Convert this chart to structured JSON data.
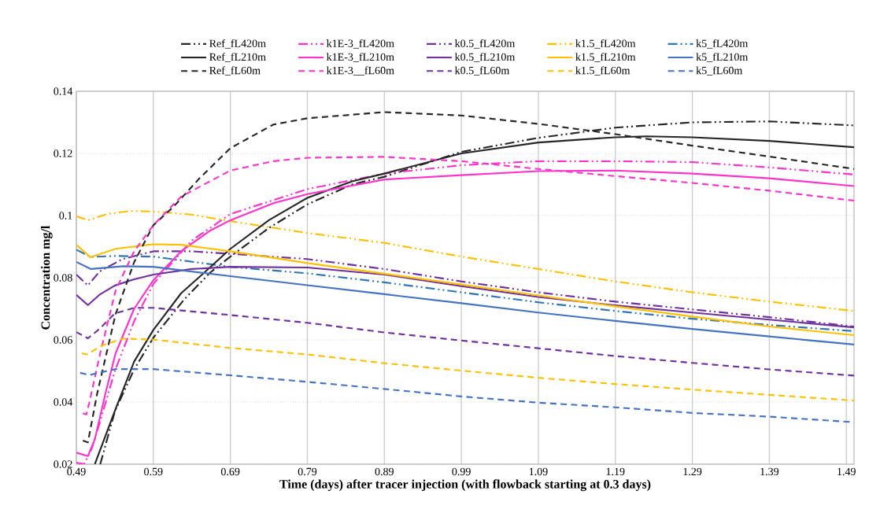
{
  "chart_data": {
    "type": "line",
    "xlabel": "Time (days) after tracer injection (with flowback starting at 0.3 days)",
    "ylabel": "Concentration mg/l",
    "xlim": [
      0.49,
      1.5
    ],
    "ylim": [
      0.02,
      0.14
    ],
    "xticks": [
      0.49,
      0.59,
      0.69,
      0.79,
      0.89,
      0.99,
      1.09,
      1.19,
      1.29,
      1.39,
      1.49
    ],
    "yticks": [
      0.02,
      0.04,
      0.06,
      0.08,
      0.1,
      0.12,
      0.14
    ],
    "grid": true,
    "legend": "top",
    "marker": "none",
    "series": [
      {
        "name": "Ref_fL420m",
        "color": "#262626",
        "line_style": "dashdotdot",
        "x": [
          0.521,
          0.54,
          0.565,
          0.59,
          0.63,
          0.664,
          0.69,
          0.74,
          0.79,
          0.848,
          0.89,
          0.99,
          1.09,
          1.19,
          1.29,
          1.39,
          1.5
        ],
        "values": [
          0.02,
          0.037,
          0.0505,
          0.0607,
          0.073,
          0.0817,
          0.0868,
          0.096,
          0.1036,
          0.11,
          0.1125,
          0.1205,
          0.125,
          0.1283,
          0.13,
          0.1303,
          0.129
        ]
      },
      {
        "name": "k1E-3_fL420m",
        "color": "#ff33cc",
        "line_style": "dashdotdot",
        "x": [
          0.49,
          0.5,
          0.51,
          0.52,
          0.54,
          0.565,
          0.59,
          0.64,
          0.69,
          0.79,
          0.89,
          0.99,
          1.09,
          1.19,
          1.29,
          1.39,
          1.5
        ],
        "values": [
          0.0205,
          0.02,
          0.025,
          0.033,
          0.05,
          0.066,
          0.078,
          0.092,
          0.1005,
          0.1085,
          0.1135,
          0.1162,
          0.1175,
          0.1175,
          0.1172,
          0.1155,
          0.1132
        ]
      },
      {
        "name": "k0.5_fL420m",
        "color": "#7030a0",
        "line_style": "dashdotdot",
        "x": [
          0.49,
          0.505,
          0.52,
          0.55,
          0.59,
          0.64,
          0.69,
          0.79,
          0.89,
          0.99,
          1.09,
          1.19,
          1.29,
          1.39,
          1.5
        ],
        "values": [
          0.081,
          0.0775,
          0.082,
          0.086,
          0.0885,
          0.0885,
          0.0877,
          0.086,
          0.0828,
          0.0788,
          0.0753,
          0.0723,
          0.0698,
          0.0673,
          0.0643
        ]
      },
      {
        "name": "k1.5_fL420m",
        "color": "#ffc000",
        "line_style": "dashdotdot",
        "x": [
          0.49,
          0.505,
          0.53,
          0.56,
          0.59,
          0.64,
          0.69,
          0.79,
          0.89,
          0.99,
          1.09,
          1.19,
          1.29,
          1.39,
          1.5
        ],
        "values": [
          0.0998,
          0.0985,
          0.1005,
          0.1015,
          0.1013,
          0.1003,
          0.0982,
          0.0944,
          0.0912,
          0.0868,
          0.0828,
          0.0788,
          0.0753,
          0.0723,
          0.0693
        ]
      },
      {
        "name": "k5_fL420m",
        "color": "#2e75b6",
        "line_style": "dashdotdot",
        "x": [
          0.49,
          0.509,
          0.541,
          0.59,
          0.69,
          0.79,
          0.89,
          0.99,
          1.09,
          1.19,
          1.29,
          1.39,
          1.5
        ],
        "values": [
          0.089,
          0.0867,
          0.087,
          0.0868,
          0.0835,
          0.0814,
          0.0785,
          0.0753,
          0.0721,
          0.0693,
          0.0668,
          0.0648,
          0.0628
        ]
      },
      {
        "name": "Ref_fL210m",
        "color": "#262626",
        "line_style": "solid",
        "x": [
          0.514,
          0.541,
          0.565,
          0.59,
          0.626,
          0.664,
          0.69,
          0.74,
          0.79,
          0.848,
          0.89,
          0.99,
          1.09,
          1.19,
          1.23,
          1.29,
          1.39,
          1.5
        ],
        "values": [
          0.02,
          0.0378,
          0.053,
          0.0632,
          0.075,
          0.0834,
          0.0893,
          0.0985,
          0.1057,
          0.111,
          0.1135,
          0.12,
          0.1235,
          0.1252,
          0.1255,
          0.1252,
          0.124,
          0.122
        ]
      },
      {
        "name": "k1E-3_fL210m",
        "color": "#ff33cc",
        "line_style": "solid",
        "x": [
          0.49,
          0.505,
          0.514,
          0.528,
          0.541,
          0.565,
          0.59,
          0.626,
          0.664,
          0.69,
          0.746,
          0.79,
          0.89,
          0.99,
          1.09,
          1.19,
          1.29,
          1.39,
          1.5
        ],
        "values": [
          0.0237,
          0.0226,
          0.028,
          0.043,
          0.0557,
          0.07,
          0.0792,
          0.0885,
          0.0952,
          0.0985,
          0.104,
          0.1069,
          0.1116,
          0.113,
          0.1143,
          0.1145,
          0.1135,
          0.112,
          0.1095
        ]
      },
      {
        "name": "k0.5_fL210m",
        "color": "#7030a0",
        "line_style": "solid",
        "x": [
          0.49,
          0.505,
          0.52,
          0.54,
          0.565,
          0.59,
          0.64,
          0.69,
          0.79,
          0.89,
          0.99,
          1.09,
          1.19,
          1.29,
          1.39,
          1.5
        ],
        "values": [
          0.0745,
          0.0712,
          0.0745,
          0.0775,
          0.0795,
          0.081,
          0.0828,
          0.0835,
          0.0833,
          0.081,
          0.0773,
          0.0738,
          0.0711,
          0.0688,
          0.0665,
          0.064
        ]
      },
      {
        "name": "k1.5_fL210m",
        "color": "#ffc000",
        "line_style": "solid",
        "x": [
          0.49,
          0.508,
          0.541,
          0.59,
          0.626,
          0.69,
          0.79,
          0.89,
          0.99,
          1.09,
          1.19,
          1.29,
          1.39,
          1.5
        ],
        "values": [
          0.0906,
          0.0866,
          0.0893,
          0.0908,
          0.0906,
          0.0885,
          0.0847,
          0.0813,
          0.0778,
          0.0743,
          0.0708,
          0.0675,
          0.0643,
          0.0615
        ]
      },
      {
        "name": "k5_fL210m",
        "color": "#4472c4",
        "line_style": "solid",
        "x": [
          0.49,
          0.509,
          0.551,
          0.59,
          0.69,
          0.79,
          0.89,
          0.99,
          1.09,
          1.19,
          1.29,
          1.39,
          1.5
        ],
        "values": [
          0.0851,
          0.0828,
          0.0837,
          0.0835,
          0.0805,
          0.0776,
          0.0747,
          0.0718,
          0.0688,
          0.0661,
          0.0635,
          0.0611,
          0.0585
        ]
      },
      {
        "name": "Ref_fL60m",
        "color": "#262626",
        "line_style": "dashed",
        "x": [
          0.4985,
          0.505,
          0.517,
          0.541,
          0.565,
          0.59,
          0.616,
          0.65,
          0.69,
          0.746,
          0.79,
          0.89,
          0.99,
          1.09,
          1.19,
          1.29,
          1.39,
          1.5
        ],
        "values": [
          0.0276,
          0.027,
          0.0427,
          0.0683,
          0.085,
          0.0969,
          0.1028,
          0.112,
          0.1217,
          0.1293,
          0.1313,
          0.1333,
          0.1322,
          0.1295,
          0.1262,
          0.1225,
          0.119,
          0.115
        ]
      },
      {
        "name": "k1E-3__fL60m",
        "color": "#ff33cc",
        "line_style": "dashed",
        "x": [
          0.4985,
          0.503,
          0.507,
          0.521,
          0.541,
          0.565,
          0.59,
          0.626,
          0.69,
          0.746,
          0.79,
          0.89,
          0.99,
          1.09,
          1.19,
          1.29,
          1.39,
          1.5
        ],
        "values": [
          0.0364,
          0.036,
          0.04,
          0.0557,
          0.0759,
          0.0885,
          0.0969,
          0.1061,
          0.1145,
          0.1175,
          0.1186,
          0.1189,
          0.1175,
          0.115,
          0.1127,
          0.1105,
          0.108,
          0.1048
        ]
      },
      {
        "name": "k0.5_fL60m",
        "color": "#7030a0",
        "line_style": "dashed",
        "x": [
          0.49,
          0.505,
          0.52,
          0.54,
          0.565,
          0.59,
          0.69,
          0.79,
          0.89,
          0.99,
          1.09,
          1.19,
          1.29,
          1.39,
          1.5
        ],
        "values": [
          0.0625,
          0.0605,
          0.0635,
          0.0685,
          0.0703,
          0.0703,
          0.068,
          0.0655,
          0.0624,
          0.0598,
          0.0573,
          0.0548,
          0.0526,
          0.0505,
          0.0485
        ]
      },
      {
        "name": "k1.5_fL60m",
        "color": "#ffc000",
        "line_style": "dashed",
        "x": [
          0.497,
          0.504,
          0.524,
          0.551,
          0.59,
          0.69,
          0.79,
          0.89,
          0.99,
          1.09,
          1.19,
          1.29,
          1.39,
          1.5
        ],
        "values": [
          0.0557,
          0.0553,
          0.0583,
          0.0604,
          0.0601,
          0.0574,
          0.0553,
          0.0525,
          0.0501,
          0.0478,
          0.0458,
          0.044,
          0.0423,
          0.0405
        ]
      },
      {
        "name": "k5_fL60m",
        "color": "#4472c4",
        "line_style": "dashed",
        "x": [
          0.495,
          0.507,
          0.541,
          0.59,
          0.69,
          0.79,
          0.89,
          0.99,
          1.09,
          1.19,
          1.29,
          1.39,
          1.5
        ],
        "values": [
          0.0494,
          0.0487,
          0.0506,
          0.0506,
          0.0486,
          0.0465,
          0.0442,
          0.0418,
          0.0398,
          0.0383,
          0.0365,
          0.0353,
          0.0335
        ]
      }
    ]
  }
}
